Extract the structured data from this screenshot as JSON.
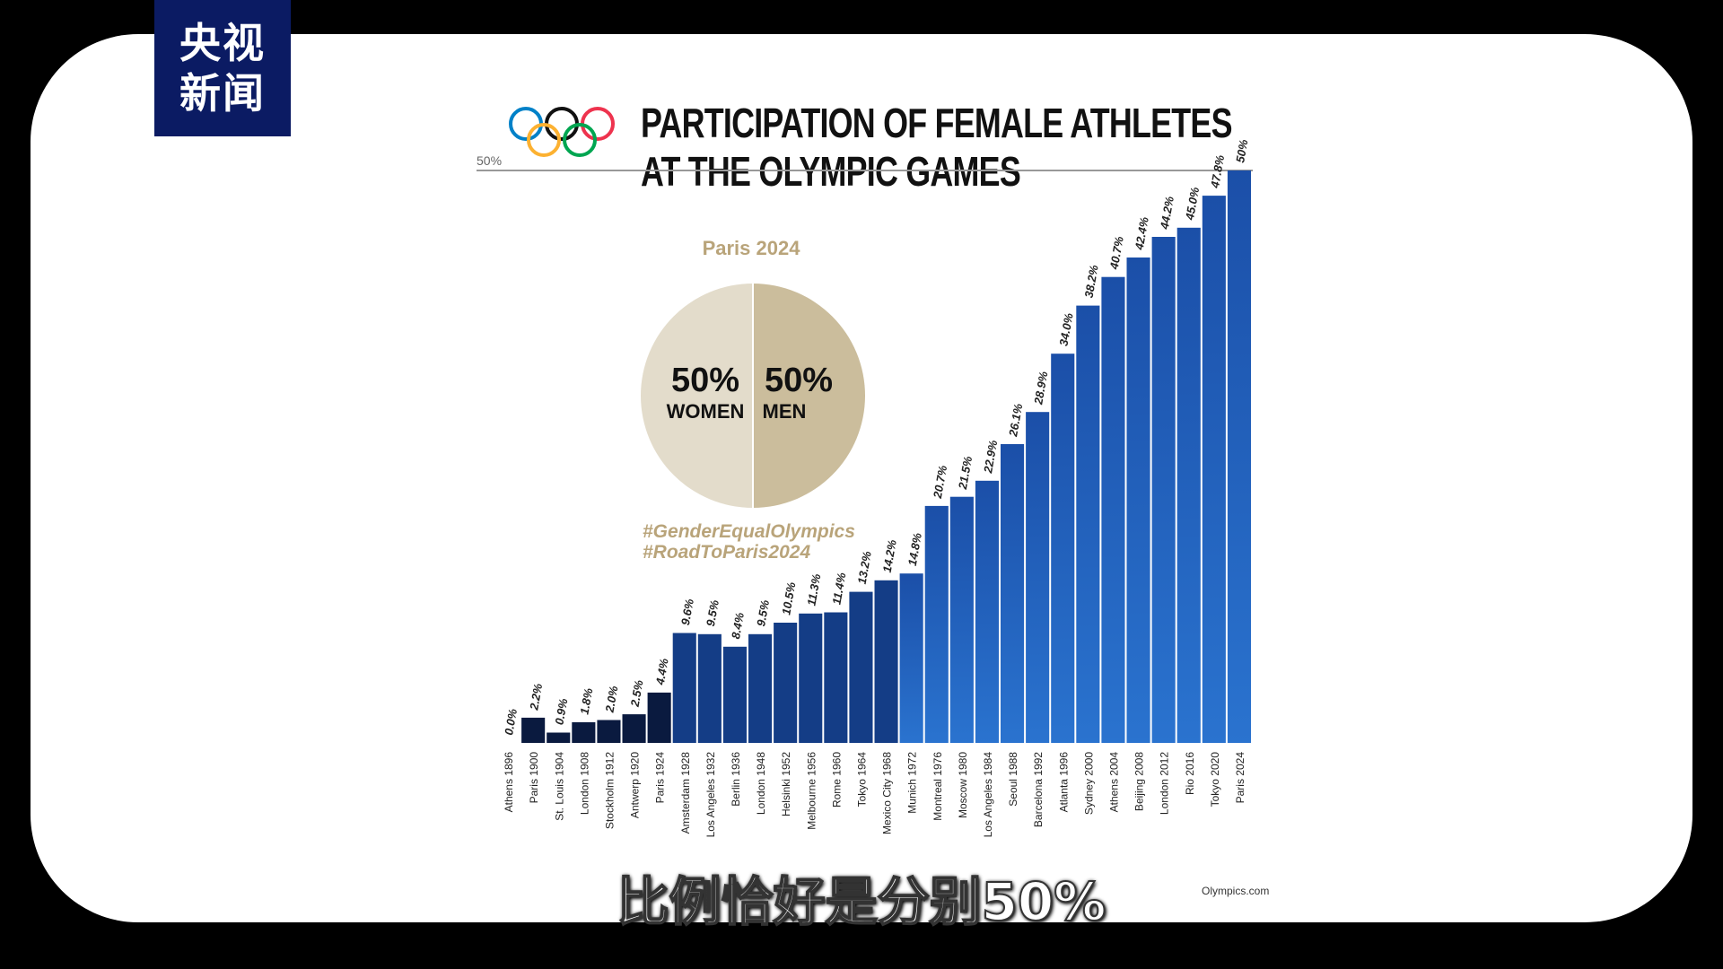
{
  "broadcaster_logo": {
    "line1": "央视",
    "line2": "新闻"
  },
  "subtitle": "比例恰好是分别50%",
  "source": "Olympics.com",
  "pie": {
    "title": "Paris 2024",
    "slices": [
      {
        "value": "50%",
        "label": "WOMEN",
        "fraction": 0.5,
        "color": "#e3dccb"
      },
      {
        "value": "50%",
        "label": "MEN",
        "fraction": 0.5,
        "color": "#cbbd9c"
      }
    ]
  },
  "hashtags": [
    "#GenderEqualOlympics",
    "#RoadToParis2024"
  ],
  "colors": {
    "dark_bar": "#0a1a3f",
    "blue_bar": "#1f5fbf",
    "pie_text": "#b9a47a"
  },
  "chart_data": {
    "type": "bar",
    "title": "PARTICIPATION OF FEMALE ATHLETES AT THE OLYMPIC GAMES",
    "title_lines": [
      "PARTICIPATION OF FEMALE ATHLETES",
      "AT THE OLYMPIC GAMES"
    ],
    "ylim": [
      0,
      50
    ],
    "y_reference_label": "50%",
    "grid": false,
    "categories": [
      "Athens 1896",
      "Paris 1900",
      "St. Louis 1904",
      "London 1908",
      "Stockholm 1912",
      "Antwerp 1920",
      "Paris 1924",
      "Amsterdam 1928",
      "Los Angeles 1932",
      "Berlin 1936",
      "London 1948",
      "Helsinki 1952",
      "Melbourne 1956",
      "Rome 1960",
      "Tokyo 1964",
      "Mexico City 1968",
      "Munich 1972",
      "Montreal 1976",
      "Moscow 1980",
      "Los Angeles 1984",
      "Seoul 1988",
      "Barcelona 1992",
      "Atlanta 1996",
      "Sydney 2000",
      "Athens 2004",
      "Beijing 2008",
      "London 2012",
      "Rio 2016",
      "Tokyo 2020",
      "Paris 2024"
    ],
    "values": [
      0.0,
      2.2,
      0.9,
      1.8,
      2.0,
      2.5,
      4.4,
      9.6,
      9.5,
      8.4,
      9.5,
      10.5,
      11.3,
      11.4,
      13.2,
      14.2,
      14.8,
      20.7,
      21.5,
      22.9,
      26.1,
      28.9,
      34.0,
      38.2,
      40.7,
      42.4,
      44.2,
      45.0,
      47.8,
      50
    ],
    "value_labels": [
      "0.0%",
      "2.2%",
      "0.9%",
      "1.8%",
      "2.0%",
      "2.5%",
      "4.4%",
      "9.6%",
      "9.5%",
      "8.4%",
      "9.5%",
      "10.5%",
      "11.3%",
      "11.4%",
      "13.2%",
      "14.2%",
      "14.8%",
      "20.7%",
      "21.5%",
      "22.9%",
      "26.1%",
      "28.9%",
      "34.0%",
      "38.2%",
      "40.7%",
      "42.4%",
      "44.2%",
      "45.0%",
      "47.8%",
      "50%"
    ]
  }
}
